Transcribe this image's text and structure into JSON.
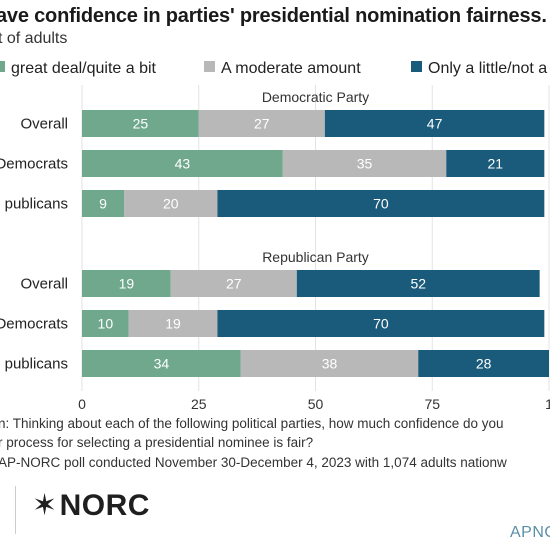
{
  "header": {
    "title": "ave confidence in parties' presidential nomination fairness.",
    "subtitle": "t of adults"
  },
  "legend": [
    {
      "label": "great deal/quite a bit",
      "color": "#6fa88c"
    },
    {
      "label": "A moderate amount",
      "color": "#b8b8b8"
    },
    {
      "label": "Only a little/not a",
      "color": "#1a5a7a"
    }
  ],
  "chart_data": {
    "type": "bar",
    "orientation": "horizontal",
    "stacked": true,
    "xlim": [
      0,
      100
    ],
    "xticks": [
      "0",
      "25",
      "50",
      "75",
      "1"
    ],
    "groups": [
      {
        "name": "Democratic Party",
        "categories": [
          "Overall",
          "Democrats",
          "publicans"
        ],
        "series": [
          {
            "values": [
              25,
              43,
              9
            ]
          },
          {
            "values": [
              27,
              35,
              20
            ]
          },
          {
            "values": [
              47,
              21,
              70
            ]
          }
        ]
      },
      {
        "name": "Republican Party",
        "categories": [
          "Overall",
          "Democrats",
          "publicans"
        ],
        "series": [
          {
            "values": [
              19,
              10,
              34
            ]
          },
          {
            "values": [
              27,
              19,
              38
            ]
          },
          {
            "values": [
              52,
              70,
              28
            ]
          }
        ]
      }
    ]
  },
  "footer": {
    "question_line1": "n: Thinking about each of the following political parties, how much confidence do you",
    "question_line2": "r process for selecting a presidential nominee is fair?",
    "source": "AP-NORC poll conducted November 30-December 4, 2023 with 1,074 adults nationw",
    "logo_text": "NORC",
    "logo_mark": "✶",
    "brand": "APNO"
  }
}
